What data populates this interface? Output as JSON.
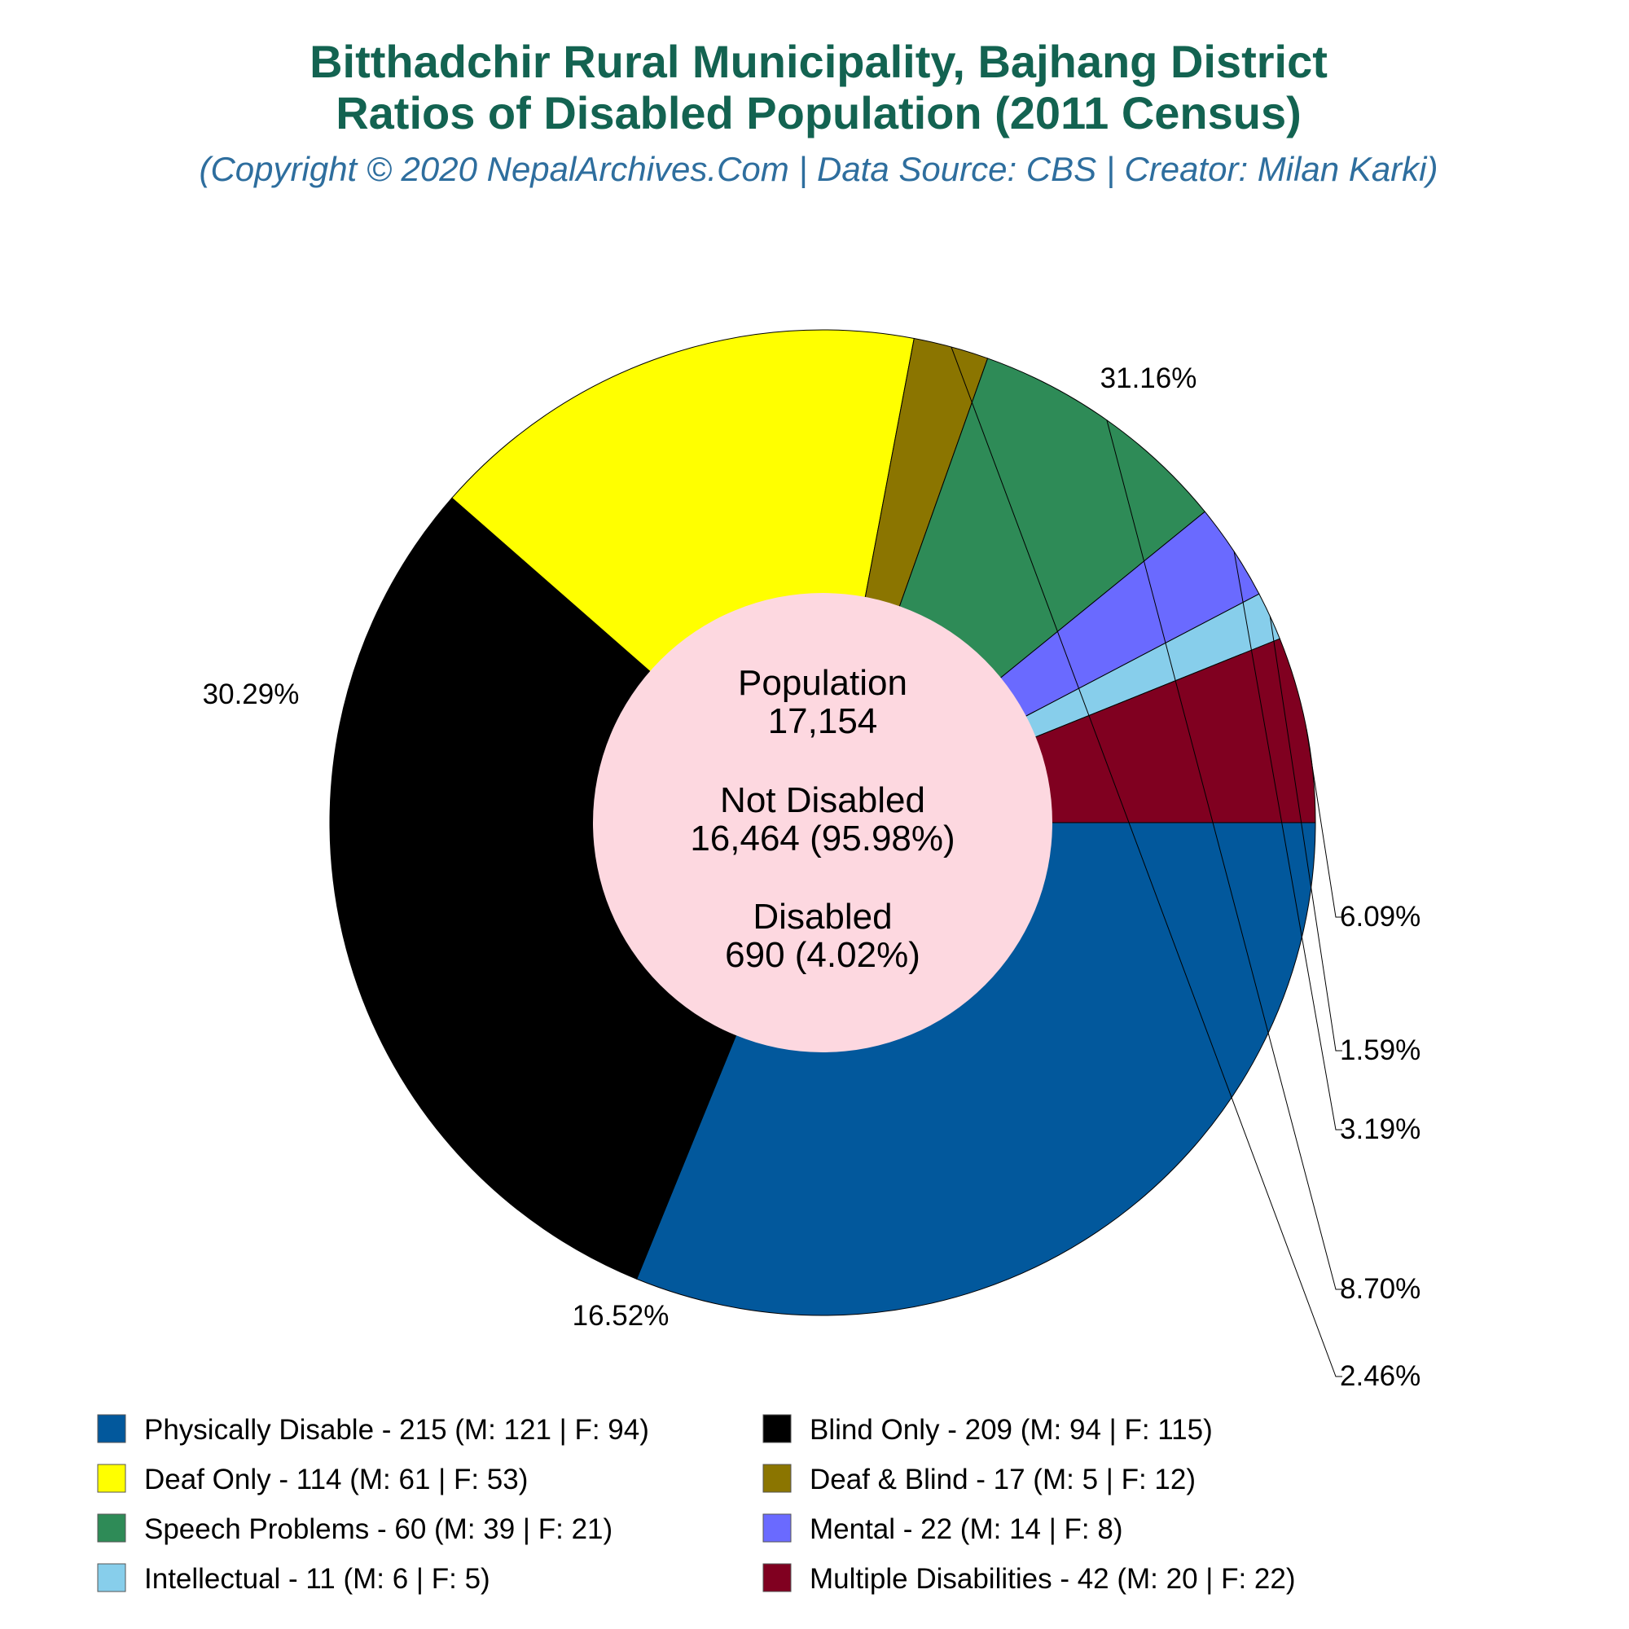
{
  "title_line1": "Bitthadchir Rural Municipality, Bajhang District",
  "title_line2": "Ratios of Disabled Population (2011 Census)",
  "subtitle": "(Copyright © 2020 NepalArchives.Com | Data Source: CBS | Creator: Milan Karki)",
  "colors": {
    "title": "#136351",
    "subtitle": "#2e6e9e",
    "center_fill": "#fdd8e0"
  },
  "center": {
    "population_label": "Population",
    "population_value": "17,154",
    "not_disabled_label": "Not Disabled",
    "not_disabled_value": "16,464 (95.98%)",
    "disabled_label": "Disabled",
    "disabled_value": "690 (4.02%)"
  },
  "chart_data": {
    "type": "pie",
    "style": "donut",
    "title": "Bitthadchir Rural Municipality, Bajhang District / Ratios of Disabled Population (2011 Census)",
    "legend_position": "bottom",
    "series": [
      {
        "name": "Physically Disable",
        "value": 215,
        "percent": "31.16%",
        "color": "#02589c",
        "legend": "Physically Disable - 215 (M: 121 | F: 94)"
      },
      {
        "name": "Blind Only",
        "value": 209,
        "percent": "30.29%",
        "color": "#000000",
        "legend": "Blind Only - 209 (M: 94 | F: 115)"
      },
      {
        "name": "Deaf Only",
        "value": 114,
        "percent": "16.52%",
        "color": "#ffff00",
        "legend": "Deaf Only - 114 (M: 61 | F: 53)"
      },
      {
        "name": "Deaf & Blind",
        "value": 17,
        "percent": "2.46%",
        "color": "#8b7500",
        "legend": "Deaf & Blind - 17 (M: 5 | F: 12)"
      },
      {
        "name": "Speech Problems",
        "value": 60,
        "percent": "8.70%",
        "color": "#2e8b57",
        "legend": "Speech Problems - 60 (M: 39 | F: 21)"
      },
      {
        "name": "Mental",
        "value": 22,
        "percent": "3.19%",
        "color": "#6a6aff",
        "legend": "Mental - 22 (M: 14 | F: 8)"
      },
      {
        "name": "Intellectual",
        "value": 11,
        "percent": "1.59%",
        "color": "#87ceeb",
        "legend": "Intellectual - 11 (M: 6 | F: 5)"
      },
      {
        "name": "Multiple Disabilities",
        "value": 42,
        "percent": "6.09%",
        "color": "#800020",
        "legend": "Multiple Disabilities - 42 (M: 20 | F: 22)"
      }
    ]
  }
}
